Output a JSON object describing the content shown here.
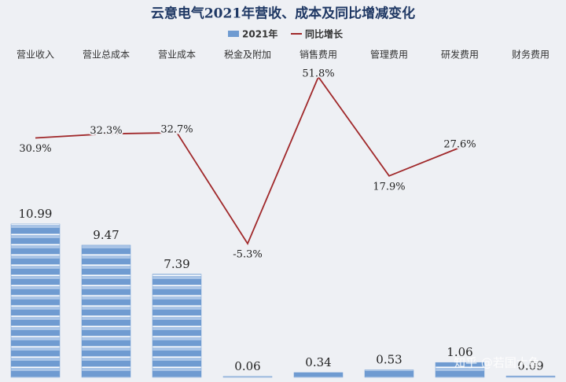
{
  "chart_data": {
    "type": "bar",
    "title": "云意电气2021年营收、成本及同比增减变化",
    "categories": [
      "营业收入",
      "营业总成本",
      "营业成本",
      "税金及附加",
      "销售费用",
      "管理费用",
      "研发费用",
      "财务费用"
    ],
    "series": [
      {
        "name": "2021年",
        "type": "bar",
        "color": "#6f9bd1",
        "values": [
          10.99,
          9.47,
          7.39,
          0.06,
          0.34,
          0.53,
          1.06,
          0.09
        ]
      },
      {
        "name": "同比增长",
        "type": "line",
        "axis": "y2",
        "color": "#a0282a",
        "values": [
          30.9,
          32.3,
          32.7,
          -5.3,
          51.8,
          17.9,
          27.6,
          null
        ],
        "value_labels": [
          "30.9%",
          "32.3%",
          "32.7%",
          "-5.3%",
          "51.8%",
          "17.9%",
          "27.6%",
          null
        ]
      }
    ],
    "ylim": [
      0,
      12
    ],
    "y2lim": [
      -45.7,
      62
    ],
    "legend": "top",
    "watermark": "知乎 @若国大鱼"
  }
}
